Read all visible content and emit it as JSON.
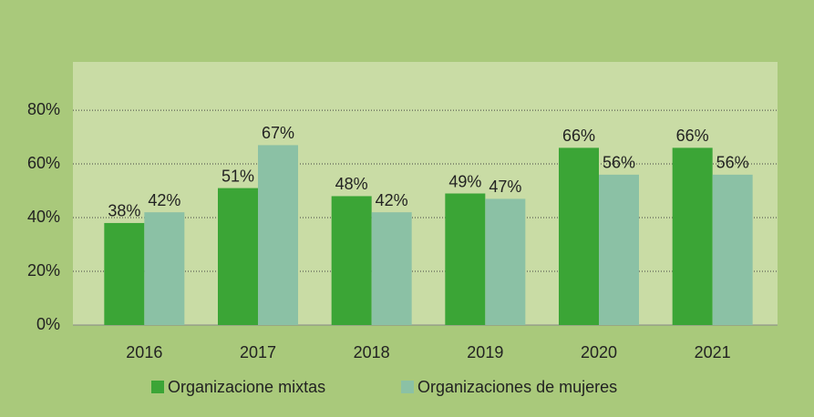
{
  "chart_data": {
    "type": "bar",
    "categories": [
      "2016",
      "2017",
      "2018",
      "2019",
      "2020",
      "2021"
    ],
    "series": [
      {
        "name": "Organizacione mixtas",
        "color": "#3ba536",
        "values": [
          38,
          51,
          48,
          49,
          66,
          66
        ],
        "value_labels": [
          "38%",
          "51%",
          "48%",
          "49%",
          "66%",
          "66%"
        ]
      },
      {
        "name": "Organizaciones de mujeres",
        "color": "#8bc1a5",
        "values": [
          42,
          67,
          42,
          47,
          56,
          56
        ],
        "value_labels": [
          "42%",
          "67%",
          "42%",
          "47%",
          "56%",
          "56%"
        ]
      }
    ],
    "ylim": [
      0,
      98
    ],
    "yticks": [
      {
        "value": 0,
        "label": "0%"
      },
      {
        "value": 20,
        "label": "20%"
      },
      {
        "value": 40,
        "label": "40%"
      },
      {
        "value": 60,
        "label": "60%"
      },
      {
        "value": 80,
        "label": "80%"
      }
    ],
    "grid": true,
    "legend": "bottom"
  }
}
